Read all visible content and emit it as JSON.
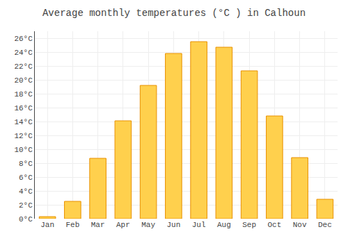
{
  "chart_data": {
    "type": "bar",
    "title": "Average monthly temperatures (°C ) in Calhoun",
    "categories": [
      "Jan",
      "Feb",
      "Mar",
      "Apr",
      "May",
      "Jun",
      "Jul",
      "Aug",
      "Sep",
      "Oct",
      "Nov",
      "Dec"
    ],
    "values": [
      0.3,
      2.5,
      8.7,
      14.1,
      19.2,
      23.8,
      25.5,
      24.7,
      21.3,
      14.8,
      8.8,
      2.8
    ],
    "color": "#FFD04D",
    "ylim": [
      0,
      27
    ],
    "yticks": [
      {
        "value": 0,
        "label": "0°C"
      },
      {
        "value": 2,
        "label": "2°C"
      },
      {
        "value": 4,
        "label": "4°C"
      },
      {
        "value": 6,
        "label": "6°C"
      },
      {
        "value": 8,
        "label": "8°C"
      },
      {
        "value": 10,
        "label": "10°C"
      },
      {
        "value": 12,
        "label": "12°C"
      },
      {
        "value": 14,
        "label": "14°C"
      },
      {
        "value": 16,
        "label": "16°C"
      },
      {
        "value": 18,
        "label": "18°C"
      },
      {
        "value": 20,
        "label": "20°C"
      },
      {
        "value": 22,
        "label": "22°C"
      },
      {
        "value": 24,
        "label": "24°C"
      },
      {
        "value": 26,
        "label": "26°C"
      }
    ],
    "grid": true
  }
}
